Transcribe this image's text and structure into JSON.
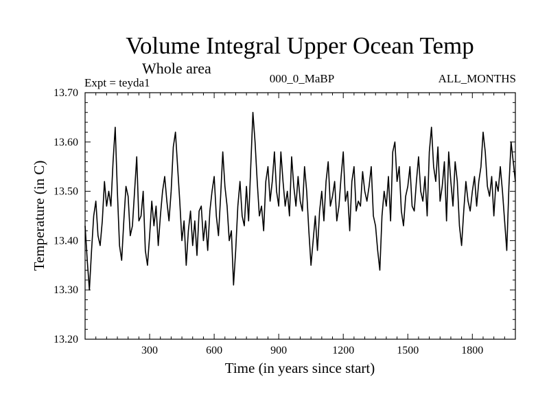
{
  "chart_data": {
    "type": "line",
    "title": "Volume Integral Upper Ocean Temp",
    "subtitle": "Whole area",
    "annotations": {
      "left": "Expt = teyda1",
      "center": "000_0_MaBP",
      "right": "ALL_MONTHS"
    },
    "xlabel": "Time (in years since start)",
    "ylabel": "Temperature (in C)",
    "xlim": [
      0,
      2000
    ],
    "ylim": [
      13.2,
      13.7
    ],
    "x_ticks": [
      300,
      600,
      900,
      1200,
      1500,
      1800
    ],
    "x_tick_labels": [
      "300",
      "600",
      "900",
      "1200",
      "1500",
      "1800"
    ],
    "y_ticks": [
      13.2,
      13.3,
      13.4,
      13.5,
      13.6,
      13.7
    ],
    "y_tick_labels": [
      "13.20",
      "13.30",
      "13.40",
      "13.50",
      "13.60",
      "13.70"
    ],
    "grid": false,
    "series": [
      {
        "name": "Volume Integral Upper Ocean Temp",
        "x": [
          0,
          10,
          20,
          30,
          40,
          50,
          60,
          70,
          80,
          90,
          100,
          110,
          120,
          130,
          140,
          150,
          160,
          170,
          180,
          190,
          200,
          210,
          220,
          230,
          240,
          250,
          260,
          270,
          280,
          290,
          300,
          310,
          320,
          330,
          340,
          350,
          360,
          370,
          380,
          390,
          400,
          410,
          420,
          430,
          440,
          450,
          460,
          470,
          480,
          490,
          500,
          510,
          520,
          530,
          540,
          550,
          560,
          570,
          580,
          590,
          600,
          610,
          620,
          630,
          640,
          650,
          660,
          670,
          680,
          690,
          700,
          710,
          720,
          730,
          740,
          750,
          760,
          770,
          780,
          790,
          800,
          810,
          820,
          830,
          840,
          850,
          860,
          870,
          880,
          890,
          900,
          910,
          920,
          930,
          940,
          950,
          960,
          970,
          980,
          990,
          1000,
          1010,
          1020,
          1030,
          1040,
          1050,
          1060,
          1070,
          1080,
          1090,
          1100,
          1110,
          1120,
          1130,
          1140,
          1150,
          1160,
          1170,
          1180,
          1190,
          1200,
          1210,
          1220,
          1230,
          1240,
          1250,
          1260,
          1270,
          1280,
          1290,
          1300,
          1310,
          1320,
          1330,
          1340,
          1350,
          1360,
          1370,
          1380,
          1390,
          1400,
          1410,
          1420,
          1430,
          1440,
          1450,
          1460,
          1470,
          1480,
          1490,
          1500,
          1510,
          1520,
          1530,
          1540,
          1550,
          1560,
          1570,
          1580,
          1590,
          1600,
          1610,
          1620,
          1630,
          1640,
          1650,
          1660,
          1670,
          1680,
          1690,
          1700,
          1710,
          1720,
          1730,
          1740,
          1750,
          1760,
          1770,
          1780,
          1790,
          1800,
          1810,
          1820,
          1830,
          1840,
          1850,
          1860,
          1870,
          1880,
          1890,
          1900,
          1910,
          1920,
          1930,
          1940,
          1950,
          1960,
          1970,
          1980,
          1990,
          2000
        ],
        "values": [
          13.43,
          13.36,
          13.3,
          13.38,
          13.45,
          13.48,
          13.41,
          13.39,
          13.44,
          13.52,
          13.47,
          13.5,
          13.47,
          13.56,
          13.63,
          13.5,
          13.39,
          13.36,
          13.44,
          13.51,
          13.49,
          13.41,
          13.43,
          13.5,
          13.57,
          13.44,
          13.45,
          13.5,
          13.38,
          13.35,
          13.41,
          13.48,
          13.43,
          13.47,
          13.39,
          13.45,
          13.5,
          13.53,
          13.48,
          13.44,
          13.5,
          13.59,
          13.62,
          13.55,
          13.48,
          13.4,
          13.44,
          13.35,
          13.42,
          13.46,
          13.39,
          13.44,
          13.37,
          13.46,
          13.47,
          13.4,
          13.44,
          13.38,
          13.46,
          13.5,
          13.53,
          13.45,
          13.41,
          13.49,
          13.58,
          13.51,
          13.47,
          13.4,
          13.42,
          13.31,
          13.38,
          13.47,
          13.52,
          13.45,
          13.43,
          13.51,
          13.44,
          13.55,
          13.66,
          13.6,
          13.52,
          13.45,
          13.47,
          13.42,
          13.52,
          13.55,
          13.48,
          13.52,
          13.58,
          13.5,
          13.47,
          13.58,
          13.52,
          13.47,
          13.5,
          13.45,
          13.57,
          13.51,
          13.47,
          13.53,
          13.48,
          13.46,
          13.55,
          13.5,
          13.42,
          13.35,
          13.4,
          13.45,
          13.38,
          13.46,
          13.5,
          13.44,
          13.52,
          13.56,
          13.47,
          13.49,
          13.52,
          13.44,
          13.47,
          13.53,
          13.58,
          13.48,
          13.5,
          13.42,
          13.52,
          13.55,
          13.46,
          13.48,
          13.47,
          13.54,
          13.5,
          13.48,
          13.51,
          13.55,
          13.45,
          13.43,
          13.38,
          13.34,
          13.45,
          13.5,
          13.47,
          13.53,
          13.44,
          13.58,
          13.6,
          13.52,
          13.55,
          13.46,
          13.43,
          13.49,
          13.51,
          13.55,
          13.47,
          13.46,
          13.52,
          13.57,
          13.5,
          13.48,
          13.53,
          13.45,
          13.58,
          13.63,
          13.55,
          13.52,
          13.59,
          13.48,
          13.51,
          13.56,
          13.44,
          13.58,
          13.52,
          13.47,
          13.56,
          13.52,
          13.43,
          13.39,
          13.46,
          13.52,
          13.48,
          13.46,
          13.5,
          13.53,
          13.47,
          13.52,
          13.55,
          13.62,
          13.58,
          13.51,
          13.49,
          13.53,
          13.45,
          13.52,
          13.5,
          13.55,
          13.5,
          13.44,
          13.38,
          13.51,
          13.6,
          13.56,
          13.52
        ]
      }
    ]
  }
}
